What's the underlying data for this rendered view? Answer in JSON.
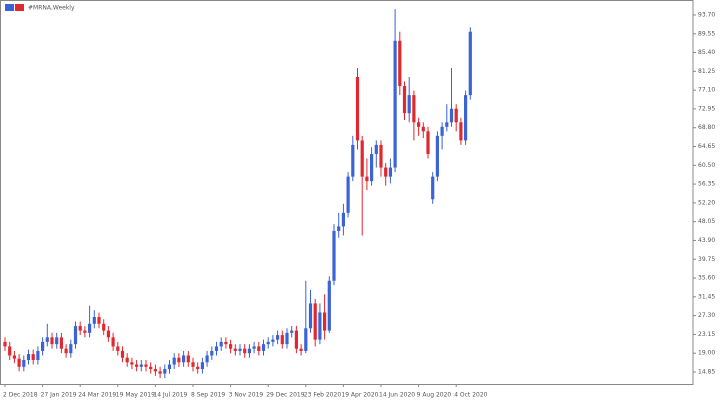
{
  "chart_data": {
    "type": "candlestick",
    "title": "#MRNA,Weekly",
    "up_color": "#3a63d6",
    "down_color": "#e0282e",
    "grid": false,
    "categories": [
      "2 Dec 2018",
      null,
      null,
      null,
      null,
      null,
      null,
      null,
      "27 Jan 2019",
      null,
      null,
      null,
      null,
      null,
      null,
      null,
      "24 Mar 2019",
      null,
      null,
      null,
      null,
      null,
      null,
      null,
      "19 May 2019",
      null,
      null,
      null,
      null,
      null,
      null,
      null,
      "14 Jul 2019",
      null,
      null,
      null,
      null,
      null,
      null,
      null,
      "8 Sep 2019",
      null,
      null,
      null,
      null,
      null,
      null,
      null,
      "3 Nov 2019",
      null,
      null,
      null,
      null,
      null,
      null,
      null,
      "29 Dec 2019",
      null,
      null,
      null,
      null,
      null,
      null,
      null,
      "23 Feb 2020",
      null,
      null,
      null,
      null,
      null,
      null,
      null,
      "19 Apr 2020",
      null,
      null,
      null,
      null,
      null,
      null,
      null,
      "14 Jun 2020",
      null,
      null,
      null,
      null,
      null,
      null,
      null,
      "9 Aug 2020",
      null,
      null,
      null,
      null,
      null,
      null,
      null,
      "4 Oct 2020",
      null,
      null,
      null
    ],
    "open": [
      21.5,
      20.5,
      18.5,
      17.8,
      16.0,
      17.5,
      18.8,
      17.5,
      19.5,
      21.5,
      22.5,
      21.0,
      22.5,
      20.0,
      19.0,
      21.0,
      25.0,
      24.0,
      23.5,
      25.5,
      27.0,
      25.5,
      24.0,
      22.5,
      20.5,
      19.5,
      18.0,
      17.0,
      16.5,
      16.0,
      16.5,
      16.0,
      15.5,
      15.0,
      14.5,
      15.5,
      16.5,
      18.0,
      17.0,
      18.5,
      17.0,
      16.0,
      15.5,
      17.0,
      18.5,
      19.5,
      20.5,
      21.5,
      21.0,
      20.0,
      19.5,
      20.0,
      19.0,
      20.0,
      20.5,
      19.5,
      21.0,
      21.5,
      22.0,
      23.0,
      21.0,
      23.5,
      24.0,
      20.0,
      19.5,
      24.5,
      30.0,
      22.0,
      28.0,
      24.0,
      35.0,
      46.0,
      47.0,
      50.0,
      58.0,
      80.0,
      66.0,
      58.0,
      57.0,
      63.0,
      65.0,
      60.0,
      58.0,
      60.0,
      88.0,
      78.0,
      72.0,
      76.0,
      70.0,
      69.0,
      68.0,
      53.0,
      58.0,
      67.0,
      69.0,
      70.0,
      73.0,
      70.0,
      66.0,
      76.0
    ],
    "high": [
      22.5,
      21.5,
      19.5,
      18.8,
      18.5,
      19.8,
      19.8,
      20.5,
      22.5,
      25.5,
      23.5,
      23.5,
      23.5,
      21.0,
      22.0,
      26.0,
      26.0,
      25.0,
      29.5,
      28.5,
      28.0,
      26.5,
      25.0,
      23.5,
      21.5,
      20.5,
      19.0,
      18.0,
      17.5,
      17.5,
      17.5,
      17.0,
      16.5,
      16.0,
      16.5,
      17.5,
      19.0,
      19.0,
      19.5,
      19.5,
      18.0,
      17.0,
      18.0,
      19.5,
      20.5,
      21.5,
      22.5,
      22.5,
      22.0,
      21.0,
      21.0,
      21.0,
      21.0,
      21.5,
      21.5,
      22.0,
      22.5,
      23.0,
      24.0,
      24.0,
      24.5,
      25.0,
      25.0,
      21.0,
      35.0,
      33.0,
      31.0,
      30.0,
      32.0,
      36.0,
      47.5,
      50.0,
      52.0,
      59.0,
      67.0,
      82.0,
      67.0,
      62.0,
      64.5,
      66.0,
      66.0,
      61.0,
      62.0,
      95.0,
      90.0,
      79.0,
      80.0,
      77.0,
      71.0,
      70.0,
      69.0,
      59.0,
      68.0,
      70.0,
      74.0,
      82.0,
      74.0,
      71.0,
      77.0,
      91.0
    ],
    "low": [
      19.5,
      17.5,
      16.8,
      15.0,
      15.0,
      16.5,
      16.5,
      16.5,
      18.5,
      20.5,
      20.0,
      20.0,
      19.0,
      18.0,
      18.0,
      20.0,
      23.0,
      22.5,
      22.5,
      24.5,
      24.5,
      23.0,
      21.5,
      19.5,
      18.5,
      17.0,
      16.0,
      15.5,
      15.0,
      15.0,
      15.0,
      14.5,
      14.0,
      13.5,
      13.5,
      14.5,
      15.5,
      16.0,
      16.0,
      16.0,
      15.0,
      14.5,
      14.5,
      16.0,
      17.5,
      18.5,
      19.5,
      20.0,
      19.0,
      18.5,
      18.5,
      18.0,
      18.0,
      19.0,
      18.5,
      18.5,
      20.0,
      20.5,
      21.0,
      20.0,
      20.0,
      22.5,
      19.0,
      18.5,
      19.0,
      23.5,
      20.5,
      21.0,
      22.0,
      23.5,
      34.0,
      44.5,
      45.0,
      49.0,
      57.0,
      64.0,
      45.0,
      55.0,
      56.0,
      60.0,
      58.0,
      56.0,
      56.5,
      59.0,
      76.0,
      70.5,
      70.0,
      66.0,
      67.0,
      66.5,
      62.0,
      52.0,
      57.0,
      64.0,
      68.0,
      69.0,
      68.0,
      65.0,
      65.0,
      75.0
    ],
    "close": [
      20.5,
      18.5,
      17.8,
      16.0,
      17.5,
      18.8,
      17.5,
      19.5,
      21.5,
      22.5,
      21.0,
      22.5,
      20.0,
      19.0,
      21.0,
      25.0,
      24.0,
      23.5,
      25.5,
      27.0,
      25.5,
      24.0,
      22.5,
      20.5,
      19.5,
      18.0,
      17.0,
      16.5,
      16.0,
      16.5,
      16.0,
      15.5,
      15.0,
      14.5,
      15.5,
      16.5,
      18.0,
      17.0,
      18.5,
      17.0,
      16.0,
      15.5,
      17.0,
      18.5,
      19.5,
      20.5,
      21.5,
      21.0,
      20.0,
      19.5,
      20.0,
      19.0,
      20.0,
      20.5,
      19.5,
      21.0,
      21.5,
      22.0,
      23.0,
      21.0,
      23.5,
      24.0,
      20.0,
      19.5,
      24.5,
      30.0,
      22.0,
      28.0,
      24.0,
      35.0,
      46.0,
      47.0,
      50.0,
      58.0,
      65.0,
      66.0,
      58.0,
      57.0,
      63.0,
      65.0,
      60.0,
      58.0,
      60.0,
      88.0,
      78.0,
      72.0,
      76.0,
      70.0,
      69.0,
      68.0,
      63.0,
      58.0,
      67.0,
      69.0,
      70.0,
      73.0,
      70.0,
      66.0,
      76.0,
      90.0
    ],
    "ylim": [
      12.2,
      95.9
    ],
    "yticks": [
      {
        "value": 14.85,
        "label": "14.85"
      },
      {
        "value": 19.0,
        "label": "19.00"
      },
      {
        "value": 23.15,
        "label": "23.15"
      },
      {
        "value": 27.3,
        "label": "27.30"
      },
      {
        "value": 31.45,
        "label": "31.45"
      },
      {
        "value": 35.6,
        "label": "35.60"
      },
      {
        "value": 39.75,
        "label": "39.75"
      },
      {
        "value": 43.9,
        "label": "43.90"
      },
      {
        "value": 48.05,
        "label": "48.05"
      },
      {
        "value": 52.2,
        "label": "52.20"
      },
      {
        "value": 56.35,
        "label": "56.35"
      },
      {
        "value": 60.5,
        "label": "60.50"
      },
      {
        "value": 64.65,
        "label": "64.65"
      },
      {
        "value": 68.8,
        "label": "68.80"
      },
      {
        "value": 72.95,
        "label": "72.95"
      },
      {
        "value": 77.1,
        "label": "77.10"
      },
      {
        "value": 81.25,
        "label": "81.25"
      },
      {
        "value": 85.4,
        "label": "85.40"
      },
      {
        "value": 89.55,
        "label": "89.55"
      },
      {
        "value": 93.7,
        "label": "93.70"
      }
    ]
  }
}
